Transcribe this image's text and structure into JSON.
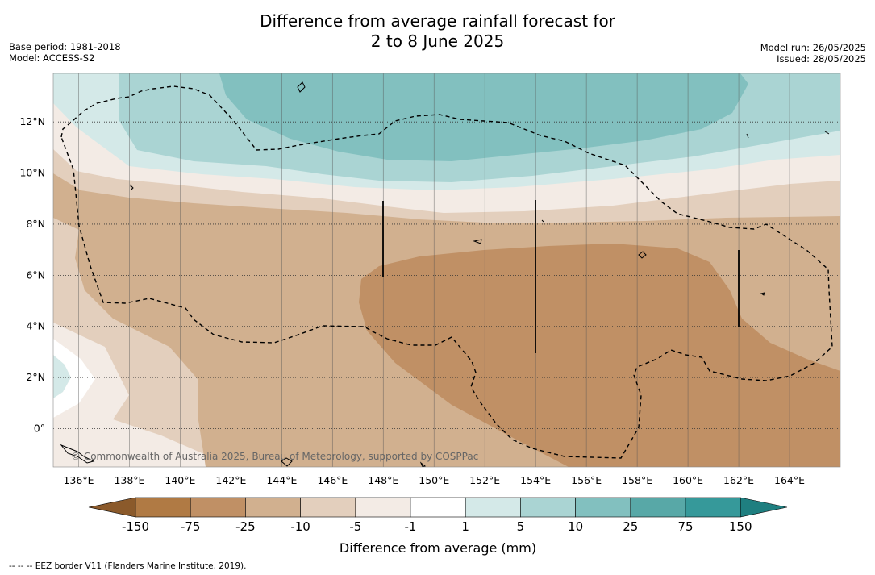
{
  "header": {
    "title_line1": "Difference from average rainfall forecast for",
    "title_line2": "2 to 8 June 2025",
    "base_period": "Base period: 1981-2018",
    "model": "Model: ACCESS-S2",
    "model_run": "Model run: 26/05/2025",
    "issued": "Issued: 28/05/2025"
  },
  "map": {
    "lon_range": [
      135,
      166
    ],
    "lat_range": [
      -1.5,
      13.9
    ],
    "lon_ticks": [
      "136°E",
      "138°E",
      "140°E",
      "142°E",
      "144°E",
      "146°E",
      "148°E",
      "150°E",
      "152°E",
      "154°E",
      "156°E",
      "158°E",
      "160°E",
      "162°E",
      "164°E"
    ],
    "lat_ticks": [
      "0°",
      "2°N",
      "4°N",
      "6°N",
      "8°N",
      "10°N",
      "12°N"
    ],
    "gridlines": true,
    "copyright": "© Commonwealth of Australia 2025, Bureau of Meteorology, supported by COSPPac"
  },
  "legend": {
    "title": "Difference from average (mm)",
    "tick_labels": [
      "-150",
      "-75",
      "-25",
      "-10",
      "-5",
      "-1",
      "1",
      "5",
      "10",
      "25",
      "75",
      "150"
    ],
    "colors": [
      "#8b5a2b",
      "#b07a44",
      "#c09065",
      "#d1b08f",
      "#e3cfbd",
      "#f3ebe5",
      "#ffffff",
      "#d4e9e8",
      "#aad4d3",
      "#82c0bf",
      "#58a8a7",
      "#36999a",
      "#1f7f80"
    ]
  },
  "footer": "--  --  -- EEZ border V11 (Flanders Marine Institute, 2019)."
}
